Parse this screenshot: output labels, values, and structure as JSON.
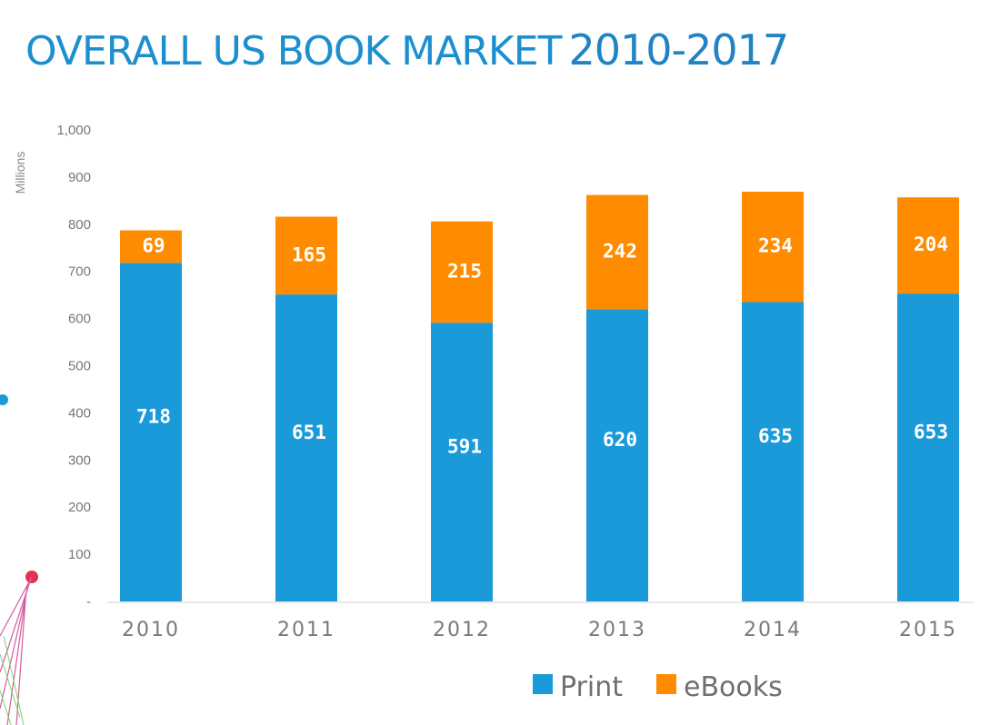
{
  "header": {
    "title_part1": "OVERALL US BOOK MARKET",
    "title_part2": "2010-2017"
  },
  "colors": {
    "print": "#1a9ad9",
    "ebooks": "#ff8c00",
    "title": "#1c8fcf"
  },
  "chart_data": {
    "type": "bar",
    "stacked": true,
    "title": "OVERALL US BOOK MARKET 2010-2017",
    "xlabel": "",
    "ylabel": "Millions",
    "categories": [
      "2010",
      "2011",
      "2012",
      "2013",
      "2014",
      "2015"
    ],
    "series": [
      {
        "name": "Print",
        "values": [
          718,
          651,
          591,
          620,
          635,
          653
        ]
      },
      {
        "name": "eBooks",
        "values": [
          69,
          165,
          215,
          242,
          234,
          204
        ]
      }
    ],
    "ylim": [
      0,
      1000
    ],
    "yticks": [
      "-",
      "100",
      "200",
      "300",
      "400",
      "500",
      "600",
      "700",
      "800",
      "900",
      "1,000"
    ],
    "grid": false,
    "legend": "bottom"
  }
}
